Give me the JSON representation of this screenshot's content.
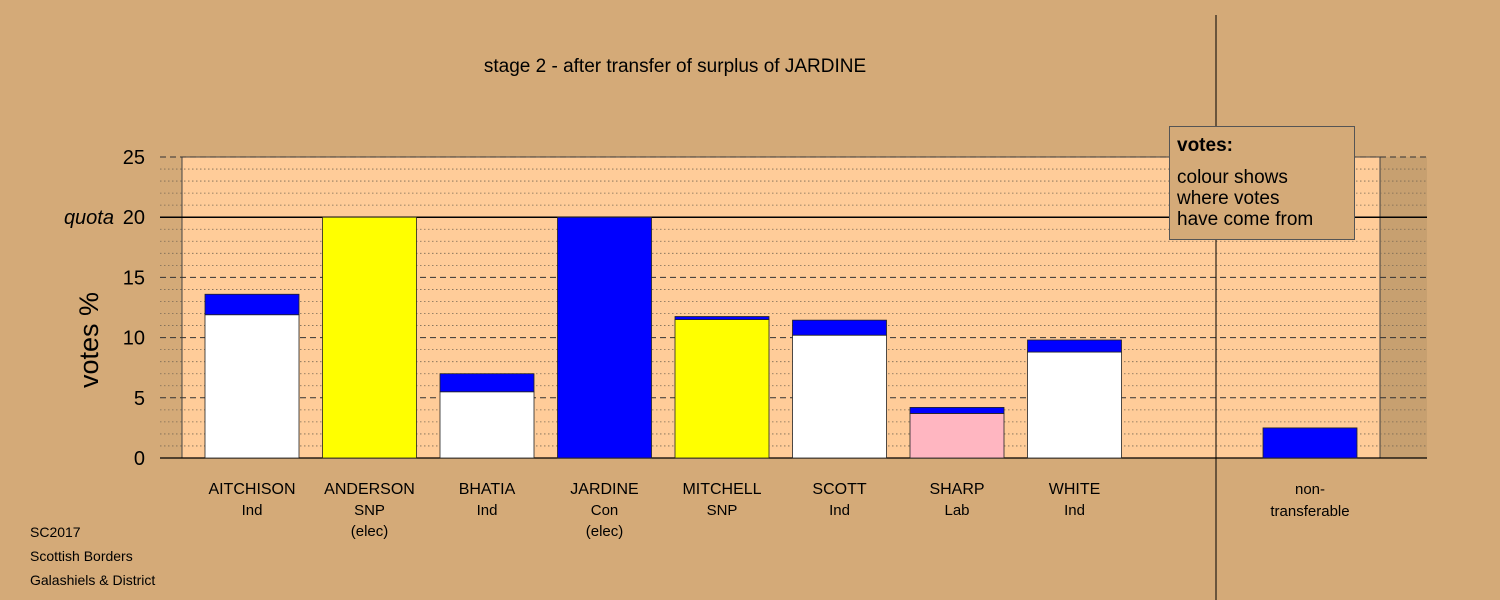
{
  "chart_data": {
    "type": "bar",
    "title": "stage 2 - after transfer of surplus of JARDINE",
    "ylabel": "votes %",
    "ylim": [
      0,
      25
    ],
    "yticks": [
      0,
      5,
      10,
      15,
      20,
      25
    ],
    "quota": {
      "value": 20,
      "label": "quota"
    },
    "categories": [
      {
        "name": "AITCHISON",
        "party": "Ind",
        "note": ""
      },
      {
        "name": "ANDERSON",
        "party": "SNP",
        "note": "(elec)"
      },
      {
        "name": "BHATIA",
        "party": "Ind",
        "note": ""
      },
      {
        "name": "JARDINE",
        "party": "Con",
        "note": "(elec)"
      },
      {
        "name": "MITCHELL",
        "party": "SNP",
        "note": ""
      },
      {
        "name": "SCOTT",
        "party": "Ind",
        "note": ""
      },
      {
        "name": "SHARP",
        "party": "Lab",
        "note": ""
      },
      {
        "name": "WHITE",
        "party": "Ind",
        "note": ""
      }
    ],
    "segments": [
      [
        {
          "value": 11.9,
          "color": "#ffffff"
        },
        {
          "value": 1.7,
          "color": "#0000ff"
        }
      ],
      [
        {
          "value": 20.0,
          "color": "#ffff00"
        }
      ],
      [
        {
          "value": 5.5,
          "color": "#ffffff"
        },
        {
          "value": 1.5,
          "color": "#0000ff"
        }
      ],
      [
        {
          "value": 20.0,
          "color": "#0000ff"
        }
      ],
      [
        {
          "value": 11.5,
          "color": "#ffff00"
        },
        {
          "value": 0.25,
          "color": "#0000ff"
        }
      ],
      [
        {
          "value": 10.2,
          "color": "#ffffff"
        },
        {
          "value": 1.25,
          "color": "#0000ff"
        }
      ],
      [
        {
          "value": 3.7,
          "color": "#ffb6c1"
        },
        {
          "value": 0.5,
          "color": "#0000ff"
        }
      ],
      [
        {
          "value": 8.8,
          "color": "#ffffff"
        },
        {
          "value": 1.0,
          "color": "#0000ff"
        }
      ]
    ],
    "nontransferable": {
      "label_line1": "non-",
      "label_line2": "transferable",
      "value": 2.5,
      "color": "#0000ff"
    },
    "plot_background": "#ffcc99",
    "page_background": "#d4aa78"
  },
  "legend": {
    "title": "votes:",
    "lines": [
      "colour shows",
      "where votes",
      "have come from"
    ]
  },
  "footer": {
    "line1": "SC2017",
    "line2": "Scottish Borders",
    "line3": "Galashiels & District"
  }
}
